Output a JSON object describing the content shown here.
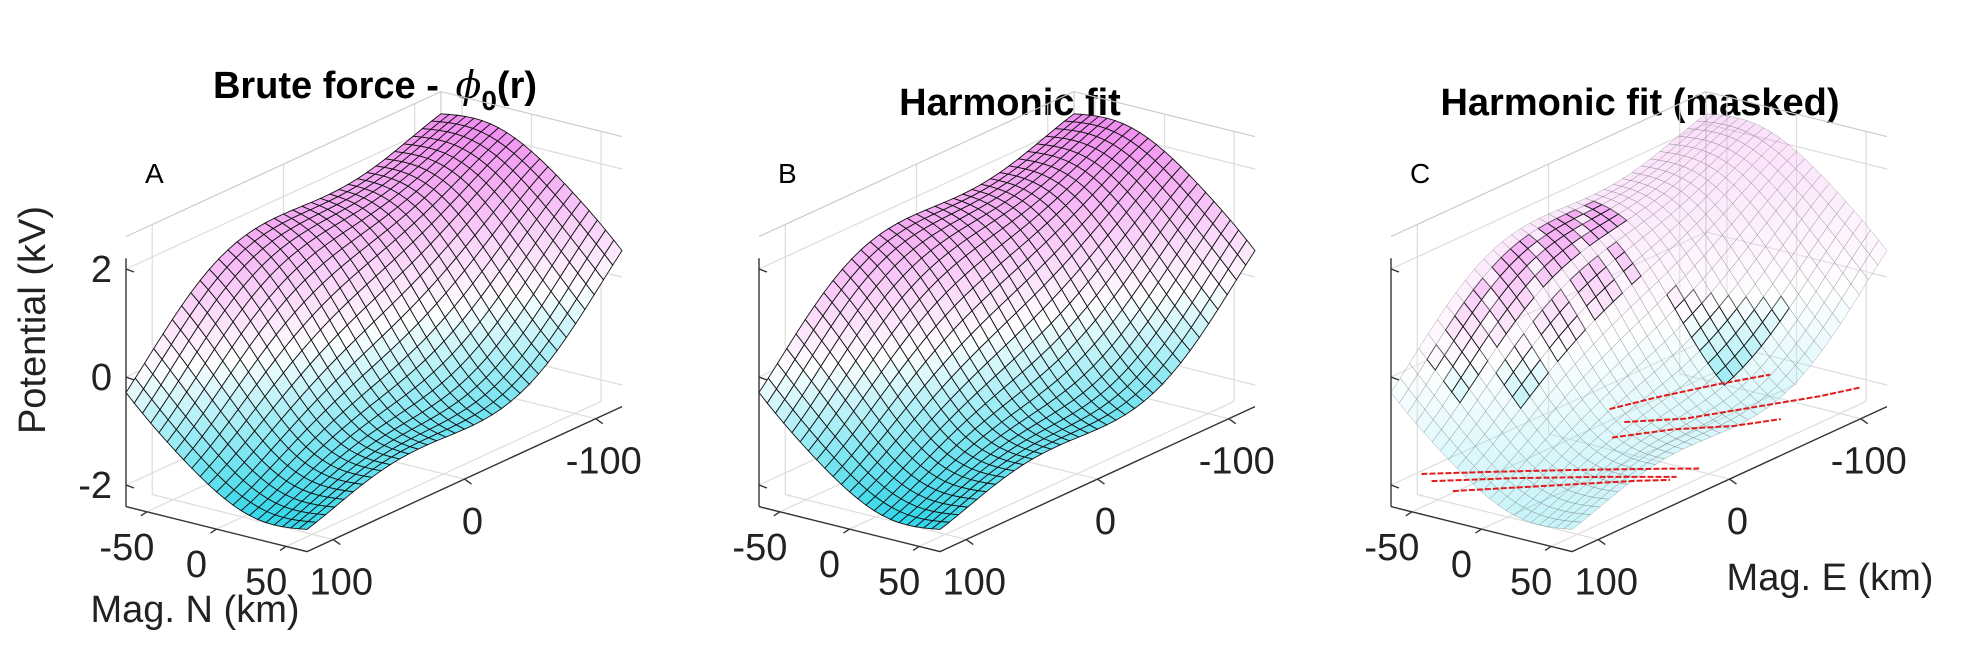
{
  "chart_data": [
    {
      "type": "surface",
      "panel_label": "A",
      "title_text": "Brute force - ",
      "title_symbol": "ϕ",
      "title_subscript": "0",
      "title_suffix": "(r)",
      "xlabel": "Mag. E (km)",
      "ylabel": "Mag. N (km)",
      "zlabel": "Potential (kV)",
      "xticks": [
        "100",
        "0",
        "-100"
      ],
      "yticks": [
        "-50",
        "0",
        "50"
      ],
      "zticks": [
        "2",
        "0",
        "-2"
      ],
      "xlim": [
        -130,
        130
      ],
      "ylim": [
        -70,
        70
      ],
      "zlim": [
        -2.2,
        2.2
      ],
      "grid": true,
      "colormap": [
        "#22d3e8",
        "#ffffff",
        "#f18ff0"
      ],
      "surface": {
        "east_range": [
          -120,
          120
        ],
        "north_range": [
          -65,
          65
        ],
        "z_max": 1.9,
        "z_min": -2.3,
        "masked": false
      },
      "surface_text": "Smooth potential surface: ~1.9 kV at north-west edge sloping to ~-2.3 kV at south-east edge"
    },
    {
      "type": "surface",
      "panel_label": "B",
      "title_text": "Harmonic fit",
      "xlabel": "",
      "ylabel": "",
      "zlabel": "",
      "xticks": [
        "100",
        "0",
        "-100"
      ],
      "yticks": [
        "-50",
        "0",
        "50"
      ],
      "zticks": [],
      "xlim": [
        -130,
        130
      ],
      "ylim": [
        -70,
        70
      ],
      "zlim": [
        -2.2,
        2.2
      ],
      "grid": true,
      "colormap": [
        "#22d3e8",
        "#ffffff",
        "#f18ff0"
      ],
      "surface": {
        "east_range": [
          -120,
          120
        ],
        "north_range": [
          -65,
          65
        ],
        "z_max": 1.9,
        "z_min": -2.3,
        "masked": false
      },
      "surface_text": "Harmonic fit surface, nearly identical to panel A"
    },
    {
      "type": "surface",
      "panel_label": "C",
      "title_text": "Harmonic fit (masked)",
      "xlabel": "Mag. E (km)",
      "ylabel": "",
      "zlabel": "",
      "xticks": [
        "100",
        "0",
        "-100"
      ],
      "yticks": [
        "-50",
        "0",
        "50"
      ],
      "zticks": [],
      "xlim": [
        -130,
        130
      ],
      "ylim": [
        -70,
        70
      ],
      "zlim": [
        -2.2,
        2.2
      ],
      "grid": true,
      "colormap": [
        "#22d3e8",
        "#ffffff",
        "#f18ff0"
      ],
      "surface": {
        "east_range": [
          -120,
          120
        ],
        "north_range": [
          -65,
          65
        ],
        "z_max": 1.9,
        "z_min": -2.3,
        "masked": true
      },
      "track_color": "#e21b1b",
      "surface_text": "Harmonic fit with masked (faded) regions and red measurement tracks on the floor"
    }
  ]
}
